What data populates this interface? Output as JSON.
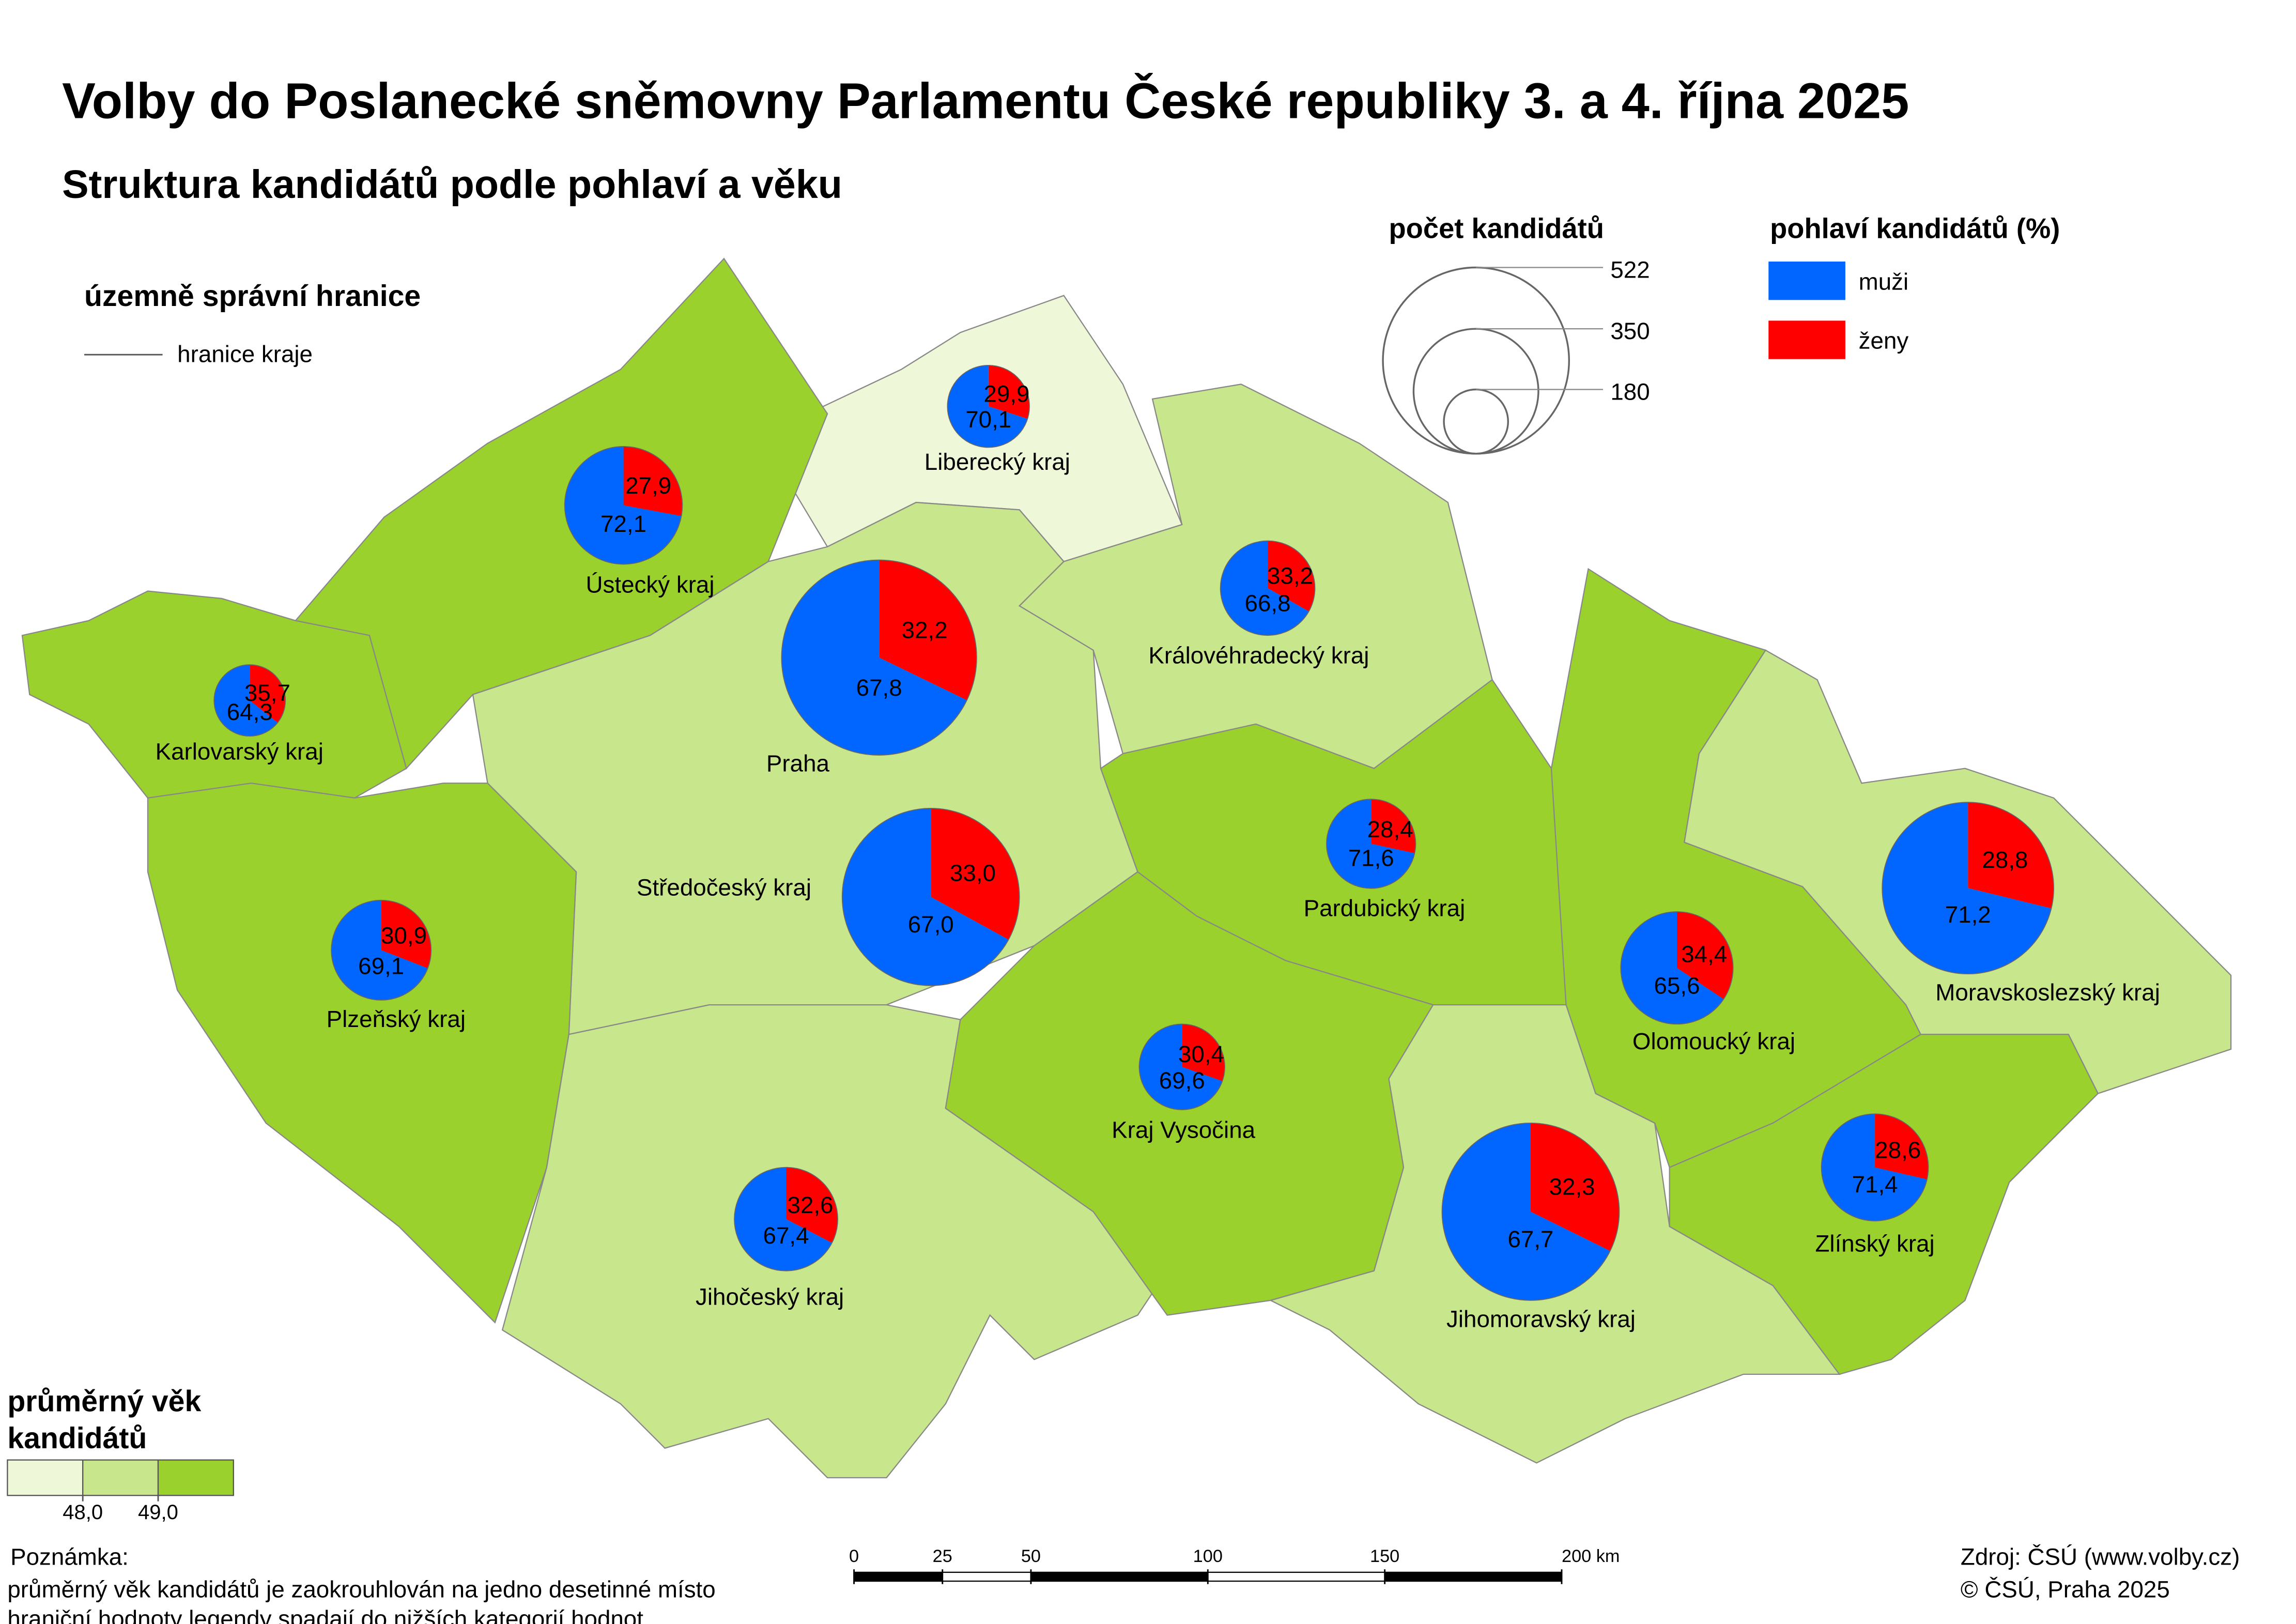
{
  "title": "Volby do Poslanecké sněmovny Parlamentu České republiky 3. a 4. října 2025",
  "subtitle": "Struktura kandidátů podle pohlaví a věku",
  "boundary_legend": {
    "title": "územně správní hranice",
    "item": "hranice kraje"
  },
  "size_legend": {
    "title": "počet kandidátů",
    "sizes": [
      522,
      350,
      180
    ]
  },
  "gender_legend": {
    "title": "pohlaví kandidátů (%)",
    "series": [
      {
        "name": "muži",
        "color": "#0066ff"
      },
      {
        "name": "ženy",
        "color": "#ff0000"
      }
    ]
  },
  "age_legend": {
    "title_lines": [
      "průměrný věk",
      "kandidátů"
    ],
    "colors": [
      "#eef8d8",
      "#c8e68c",
      "#9bd12c"
    ],
    "breaks": [
      {
        "value": 48,
        "label": "48,0"
      },
      {
        "value": 49,
        "label": "49,0"
      }
    ]
  },
  "regions": [
    {
      "name": "Liberecký kraj",
      "men": 70.1,
      "men_label": "70,1",
      "women": 29.9,
      "women_label": "29,9",
      "candidates": 230,
      "color": "#eef8d8"
    },
    {
      "name": "Ústecký kraj",
      "men": 72.1,
      "men_label": "72,1",
      "women": 27.9,
      "women_label": "27,9",
      "candidates": 330,
      "color": "#9bd12c"
    },
    {
      "name": "Karlovarský kraj",
      "men": 64.3,
      "men_label": "64,3",
      "women": 35.7,
      "women_label": "35,7",
      "candidates": 200,
      "color": "#9bd12c"
    },
    {
      "name": "Praha",
      "men": 67.8,
      "men_label": "67,8",
      "women": 32.2,
      "women_label": "32,2",
      "candidates": 547,
      "color": "#9bd12c"
    },
    {
      "name": "Středočeský kraj",
      "men": 67.0,
      "men_label": "67,0",
      "women": 33.0,
      "women_label": "33,0",
      "candidates": 497,
      "color": "#c8e68c"
    },
    {
      "name": "Plzeňský kraj",
      "men": 69.1,
      "men_label": "69,1",
      "women": 30.9,
      "women_label": "30,9",
      "candidates": 280,
      "color": "#9bd12c"
    },
    {
      "name": "Jihočeský kraj",
      "men": 67.4,
      "men_label": "67,4",
      "women": 32.6,
      "women_label": "32,6",
      "candidates": 290,
      "color": "#c8e68c"
    },
    {
      "name": "Královéhradecký kraj",
      "men": 66.8,
      "men_label": "66,8",
      "women": 33.2,
      "women_label": "33,2",
      "candidates": 265,
      "color": "#c8e68c"
    },
    {
      "name": "Pardubický kraj",
      "men": 71.6,
      "men_label": "71,6",
      "women": 28.4,
      "women_label": "28,4",
      "candidates": 250,
      "color": "#9bd12c"
    },
    {
      "name": "Kraj Vysočina",
      "men": 69.6,
      "men_label": "69,6",
      "women": 30.4,
      "women_label": "30,4",
      "candidates": 240,
      "color": "#9bd12c"
    },
    {
      "name": "Jihomoravský kraj",
      "men": 67.7,
      "men_label": "67,7",
      "women": 32.3,
      "women_label": "32,3",
      "candidates": 497,
      "color": "#c8e68c"
    },
    {
      "name": "Olomoucký kraj",
      "men": 65.6,
      "men_label": "65,6",
      "women": 34.4,
      "women_label": "34,4",
      "candidates": 315,
      "color": "#9bd12c"
    },
    {
      "name": "Moravskoslezský kraj",
      "men": 71.2,
      "men_label": "71,2",
      "women": 28.8,
      "women_label": "28,8",
      "candidates": 481,
      "color": "#c8e68c"
    },
    {
      "name": "Zlínský kraj",
      "men": 71.4,
      "men_label": "71,4",
      "women": 28.6,
      "women_label": "28,6",
      "candidates": 300,
      "color": "#9bd12c"
    }
  ],
  "scale_bar": {
    "ticks": [
      0,
      25,
      50,
      100,
      150,
      {
        "value": 200,
        "label": "200 km"
      }
    ]
  },
  "note": {
    "heading": "Poznámka:",
    "lines": [
      "průměrný věk kandidátů je zaokrouhlován na jedno desetinné místo",
      "hraniční hodnoty legendy spadají do nižších kategorií hodnot"
    ]
  },
  "source": [
    "Zdroj: ČSÚ (www.volby.cz)",
    "© ČSÚ, Praha 2025"
  ]
}
